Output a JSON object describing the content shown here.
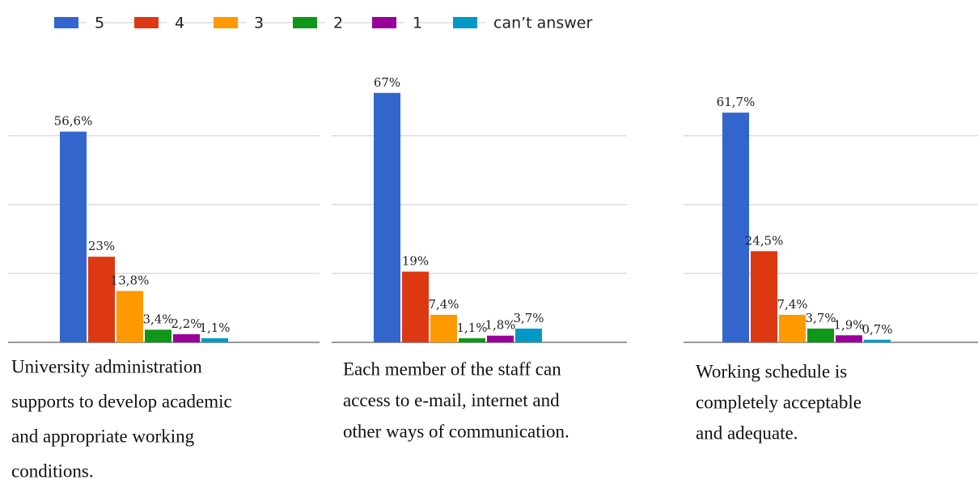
{
  "chart_data": [
    {
      "type": "bar",
      "caption": [
        "University administration",
        "supports to develop academic",
        "and appropriate working",
        "conditions."
      ],
      "series": [
        {
          "name": "5",
          "color": "#3366cc",
          "values": [
            56.6
          ],
          "value_labels": [
            "56,6%"
          ]
        },
        {
          "name": "4",
          "color": "#dc3912",
          "values": [
            23
          ],
          "value_labels": [
            "23%"
          ]
        },
        {
          "name": "3",
          "color": "#ff9900",
          "values": [
            13.8
          ],
          "value_labels": [
            "13,8%"
          ]
        },
        {
          "name": "2",
          "color": "#109618",
          "values": [
            3.4
          ],
          "value_labels": [
            "3,4%"
          ]
        },
        {
          "name": "1",
          "color": "#990099",
          "values": [
            2.2
          ],
          "value_labels": [
            "2,2%"
          ]
        },
        {
          "name": "can’t answer",
          "color": "#0099c6",
          "values": [
            1.1
          ],
          "value_labels": [
            "1,1%"
          ]
        }
      ],
      "ylim": [
        0,
        70
      ],
      "yticks": [
        0,
        18.5,
        37,
        55.5
      ],
      "grid": true
    },
    {
      "type": "bar",
      "caption": [
        "Each member of the staff can",
        "access to e-mail, internet and",
        "other ways of communication."
      ],
      "series": [
        {
          "name": "5",
          "color": "#3366cc",
          "values": [
            67
          ],
          "value_labels": [
            "67%"
          ]
        },
        {
          "name": "4",
          "color": "#dc3912",
          "values": [
            19
          ],
          "value_labels": [
            "19%"
          ]
        },
        {
          "name": "3",
          "color": "#ff9900",
          "values": [
            7.4
          ],
          "value_labels": [
            "7,4%"
          ]
        },
        {
          "name": "2",
          "color": "#109618",
          "values": [
            1.1
          ],
          "value_labels": [
            "1,1%"
          ]
        },
        {
          "name": "1",
          "color": "#990099",
          "values": [
            1.8
          ],
          "value_labels": [
            "1,8%"
          ]
        },
        {
          "name": "can’t answer",
          "color": "#0099c6",
          "values": [
            3.7
          ],
          "value_labels": [
            "3,7%"
          ]
        }
      ],
      "ylim": [
        0,
        70
      ],
      "yticks": [
        0,
        18.5,
        37,
        55.5
      ],
      "grid": true
    },
    {
      "type": "bar",
      "caption": [
        "Working schedule is",
        "completely acceptable",
        "and adequate."
      ],
      "series": [
        {
          "name": "5",
          "color": "#3366cc",
          "values": [
            61.7
          ],
          "value_labels": [
            "61,7%"
          ]
        },
        {
          "name": "4",
          "color": "#dc3912",
          "values": [
            24.5
          ],
          "value_labels": [
            "24,5%"
          ]
        },
        {
          "name": "3",
          "color": "#ff9900",
          "values": [
            7.4
          ],
          "value_labels": [
            "7,4%"
          ]
        },
        {
          "name": "2",
          "color": "#109618",
          "values": [
            3.7
          ],
          "value_labels": [
            "3,7%"
          ]
        },
        {
          "name": "1",
          "color": "#990099",
          "values": [
            1.9
          ],
          "value_labels": [
            "1,9%"
          ]
        },
        {
          "name": "can’t answer",
          "color": "#0099c6",
          "values": [
            0.7
          ],
          "value_labels": [
            "0,7%"
          ]
        }
      ],
      "ylim": [
        0,
        70
      ],
      "yticks": [
        0,
        18.5,
        37,
        55.5
      ],
      "grid": true
    }
  ]
}
